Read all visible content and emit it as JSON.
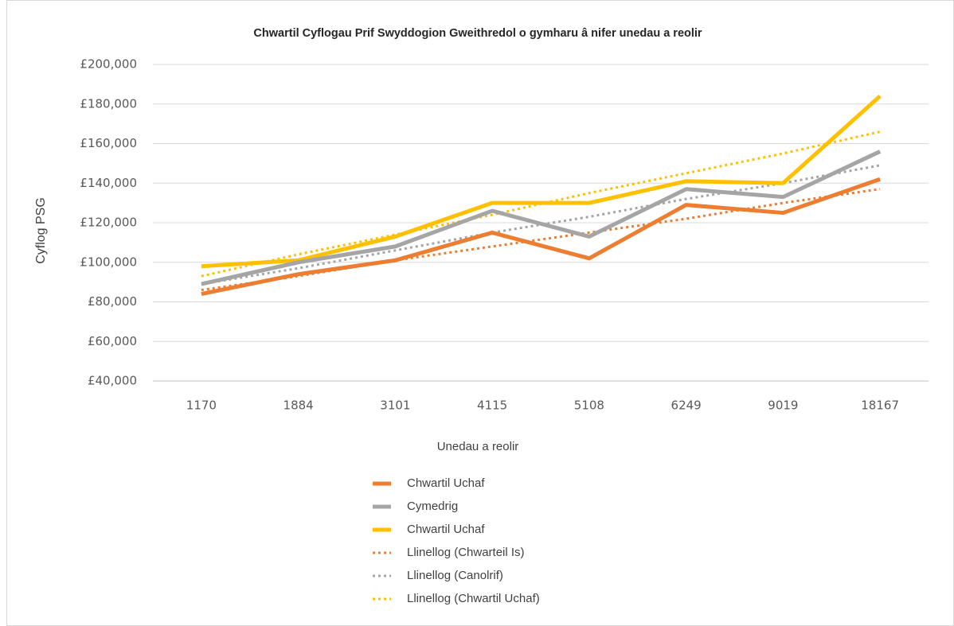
{
  "chart_data": {
    "type": "line",
    "title": "Chwartil Cyflogau Prif Swyddogion Gweithredol o gymharu â nifer unedau a reolir",
    "x_label": "Unedau a reolir",
    "y_label": "Cyflog PSG",
    "categories": [
      "1170",
      "1884",
      "3101",
      "4115",
      "5108",
      "6249",
      "9019",
      "18167"
    ],
    "series": [
      {
        "name": "Chwartil Uchaf",
        "color": "#ed7d31",
        "style": "solid",
        "values": [
          84000,
          94000,
          101000,
          115000,
          102000,
          129000,
          125000,
          142000
        ]
      },
      {
        "name": "Cymedrig",
        "color": "#a5a5a5",
        "style": "solid",
        "values": [
          89000,
          100000,
          108000,
          126000,
          113000,
          137000,
          133000,
          156000
        ]
      },
      {
        "name": "Chwartil Uchaf",
        "color": "#ffc000",
        "style": "solid",
        "values": [
          98000,
          101000,
          113000,
          130000,
          130000,
          141000,
          140000,
          184000
        ]
      },
      {
        "name": "Llinellog (Chwarteil Is)",
        "color": "#ed7d31",
        "style": "dotted",
        "values": [
          86000,
          93000,
          101000,
          108000,
          115000,
          122000,
          130000,
          137000
        ]
      },
      {
        "name": "Llinellog (Canolrif)",
        "color": "#a5a5a5",
        "style": "dotted",
        "values": [
          89000,
          97000,
          106000,
          115000,
          123000,
          132000,
          140000,
          149000
        ]
      },
      {
        "name": "Llinellog (Chwartil Uchaf)",
        "color": "#ffc000",
        "style": "dotted",
        "values": [
          93000,
          104000,
          114000,
          124000,
          135000,
          145000,
          155000,
          166000
        ]
      }
    ],
    "ylim": [
      40000,
      200000
    ],
    "yticks": [
      {
        "value": 40000,
        "label": "£40,000"
      },
      {
        "value": 60000,
        "label": "£60,000"
      },
      {
        "value": 80000,
        "label": "£80,000"
      },
      {
        "value": 100000,
        "label": "£100,000"
      },
      {
        "value": 120000,
        "label": "£120,000"
      },
      {
        "value": 140000,
        "label": "£140,000"
      },
      {
        "value": 160000,
        "label": "£160,000"
      },
      {
        "value": 180000,
        "label": "£180,000"
      },
      {
        "value": 200000,
        "label": "£200,000"
      }
    ],
    "grid": true,
    "legend": "bottom"
  }
}
